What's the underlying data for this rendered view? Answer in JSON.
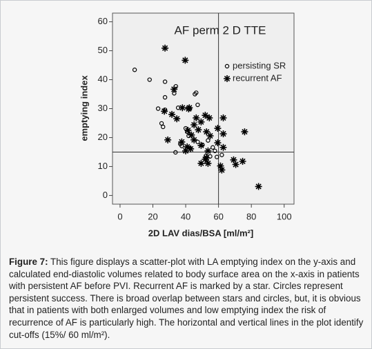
{
  "chart_data": {
    "type": "scatter",
    "title": "AF perm 2 D TTE",
    "x_label": "2D LAV dias/BSA [ml/m²]",
    "y_label": "emptying index",
    "xlim": [
      -4.6,
      106
    ],
    "ylim": [
      -3,
      63
    ],
    "xticks": [
      0,
      20,
      40,
      60,
      80,
      100
    ],
    "yticks": [
      0,
      10,
      20,
      30,
      40,
      50,
      60
    ],
    "hlines": [
      15
    ],
    "vlines": [
      60
    ],
    "legend": "upper right",
    "series": [
      {
        "name": "persisting SR",
        "marker": "circle",
        "color": "#000000",
        "x": [
          8.9,
          18,
          27.4,
          34,
          33,
          27.4,
          46.4,
          45.6,
          23.2,
          27.4,
          25.3,
          26.2,
          47.3,
          35.4,
          40,
          40.9,
          41.8,
          36.7,
          37.6,
          33.8,
          50.2,
          53.6,
          56.5,
          52.3,
          54.9,
          59,
          62,
          57.8,
          42.6,
          47.3
        ],
        "values": [
          43.4,
          40,
          39.3,
          37.7,
          35.3,
          33.9,
          35.5,
          35,
          30,
          29.6,
          24.9,
          23.7,
          31.3,
          30.3,
          23.2,
          22,
          20.6,
          17.8,
          17.1,
          14.9,
          17.5,
          19,
          16.6,
          13.7,
          13.5,
          13.3,
          14,
          15.4,
          16.4,
          18.5
        ]
      },
      {
        "name": "recurrent AF",
        "marker": "star",
        "color": "#000000",
        "x": [
          27.4,
          39.7,
          32.9,
          38,
          41.8,
          27,
          31.6,
          34.6,
          42.2,
          46.4,
          51.9,
          54.4,
          62.9,
          49.4,
          45.1,
          41.4,
          43.5,
          47.7,
          52.7,
          59.5,
          54.9,
          62.9,
          75.9,
          29.1,
          45.1,
          49.4,
          59.5,
          62.9,
          40.9,
          43,
          40,
          53.6,
          52.7,
          49.4,
          53.6,
          51.9,
          61.2,
          62,
          69.2,
          70.5,
          74.7,
          84.4,
          37.6
        ],
        "values": [
          50.9,
          46.7,
          36.7,
          30.3,
          29.9,
          29.1,
          28,
          26.5,
          30.3,
          26.8,
          27.7,
          26.8,
          26.8,
          25.4,
          24.4,
          22.5,
          20.9,
          22.7,
          22,
          23.2,
          20.6,
          21.3,
          22,
          19.2,
          19.2,
          17.3,
          18.2,
          16.6,
          16.8,
          16.1,
          15.4,
          15.4,
          13,
          11.1,
          11.1,
          12.5,
          10.2,
          8.8,
          12.3,
          10.7,
          11.8,
          3.1,
          18.5
        ]
      }
    ]
  },
  "caption_label": "Figure 7:",
  "caption_text": "This figure displays a scatter-plot with LA emptying index on the y-axis and calculated end-diastolic volumes related to body surface area on the x-axis in patients with persistent AF before PVI. Recurrent AF is marked by a star. Circles represent persistent success. There is broad overlap between stars and circles, but, it is obvious that in patients with both enlarged volumes and low emptying index the risk of recurrence of AF is particularly high. The horizontal and vertical lines in the plot identify cut-offs (15%/ 60 ml/m²)."
}
